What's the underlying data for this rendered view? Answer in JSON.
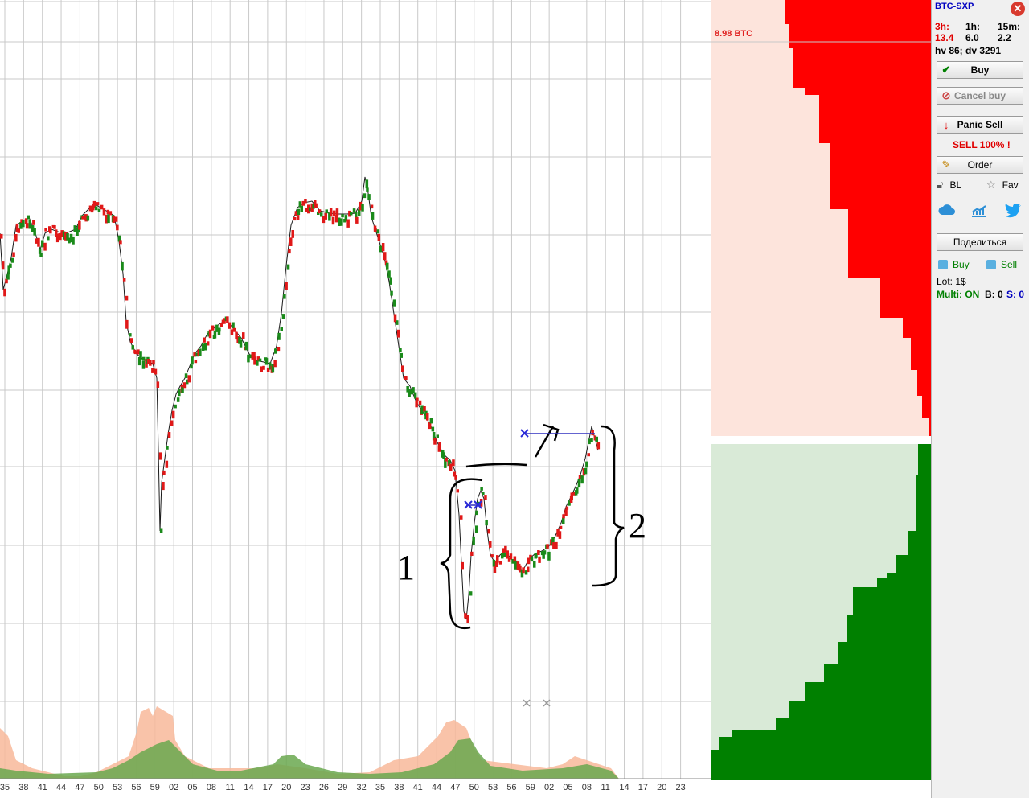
{
  "panel": {
    "pair": "BTC-SXP",
    "tf": [
      {
        "label": "3h:",
        "value": "13.4"
      },
      {
        "label": "1h:",
        "value": "6.0"
      },
      {
        "label": "15m:",
        "value": "2.2"
      }
    ],
    "hv_dv": "hv 86; dv 3291",
    "buy_label": "Buy",
    "cancel_buy_label": "Cancel buy",
    "panic_sell_label": "Panic Sell",
    "sell_pct": "SELL 100% !",
    "order_label": "Order",
    "bl_label": "BL",
    "fav_label": "Fav",
    "share_label": "Поделиться",
    "mini_buy_label": "Buy",
    "mini_sell_label": "Sell",
    "lot": "Lot: 1$",
    "multi": "Multi: ON",
    "b_count": "B: 0",
    "s_count": "S: 0"
  },
  "book": {
    "wall_label": "8.98 BTC",
    "ask_color": "#ff0000",
    "bid_color": "#008000"
  },
  "chart": {
    "time_ticks": [
      "35",
      "38",
      "41",
      "44",
      "47",
      "50",
      "53",
      "56",
      "59",
      "02",
      "05",
      "08",
      "11",
      "14",
      "17",
      "20",
      "23",
      "26",
      "29",
      "32",
      "35",
      "38",
      "41",
      "44",
      "47",
      "50",
      "53",
      "56",
      "59",
      "02",
      "05",
      "08",
      "11",
      "14",
      "17",
      "20",
      "23"
    ],
    "annotations": [
      "1",
      "2"
    ]
  }
}
